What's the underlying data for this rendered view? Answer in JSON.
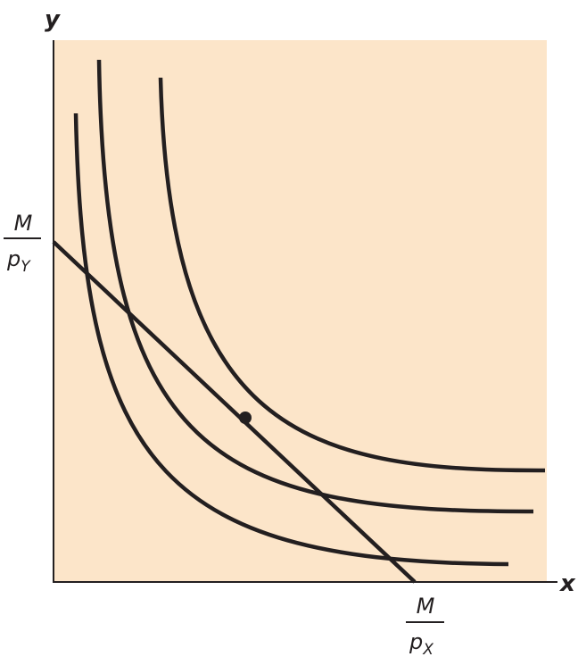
{
  "axes": {
    "y_label": "y",
    "x_label": "x"
  },
  "y_intercept": {
    "numerator": "M",
    "denominator": "p",
    "subscript": "Y"
  },
  "x_intercept": {
    "numerator": "M",
    "denominator": "p",
    "subscript": "X"
  }
}
